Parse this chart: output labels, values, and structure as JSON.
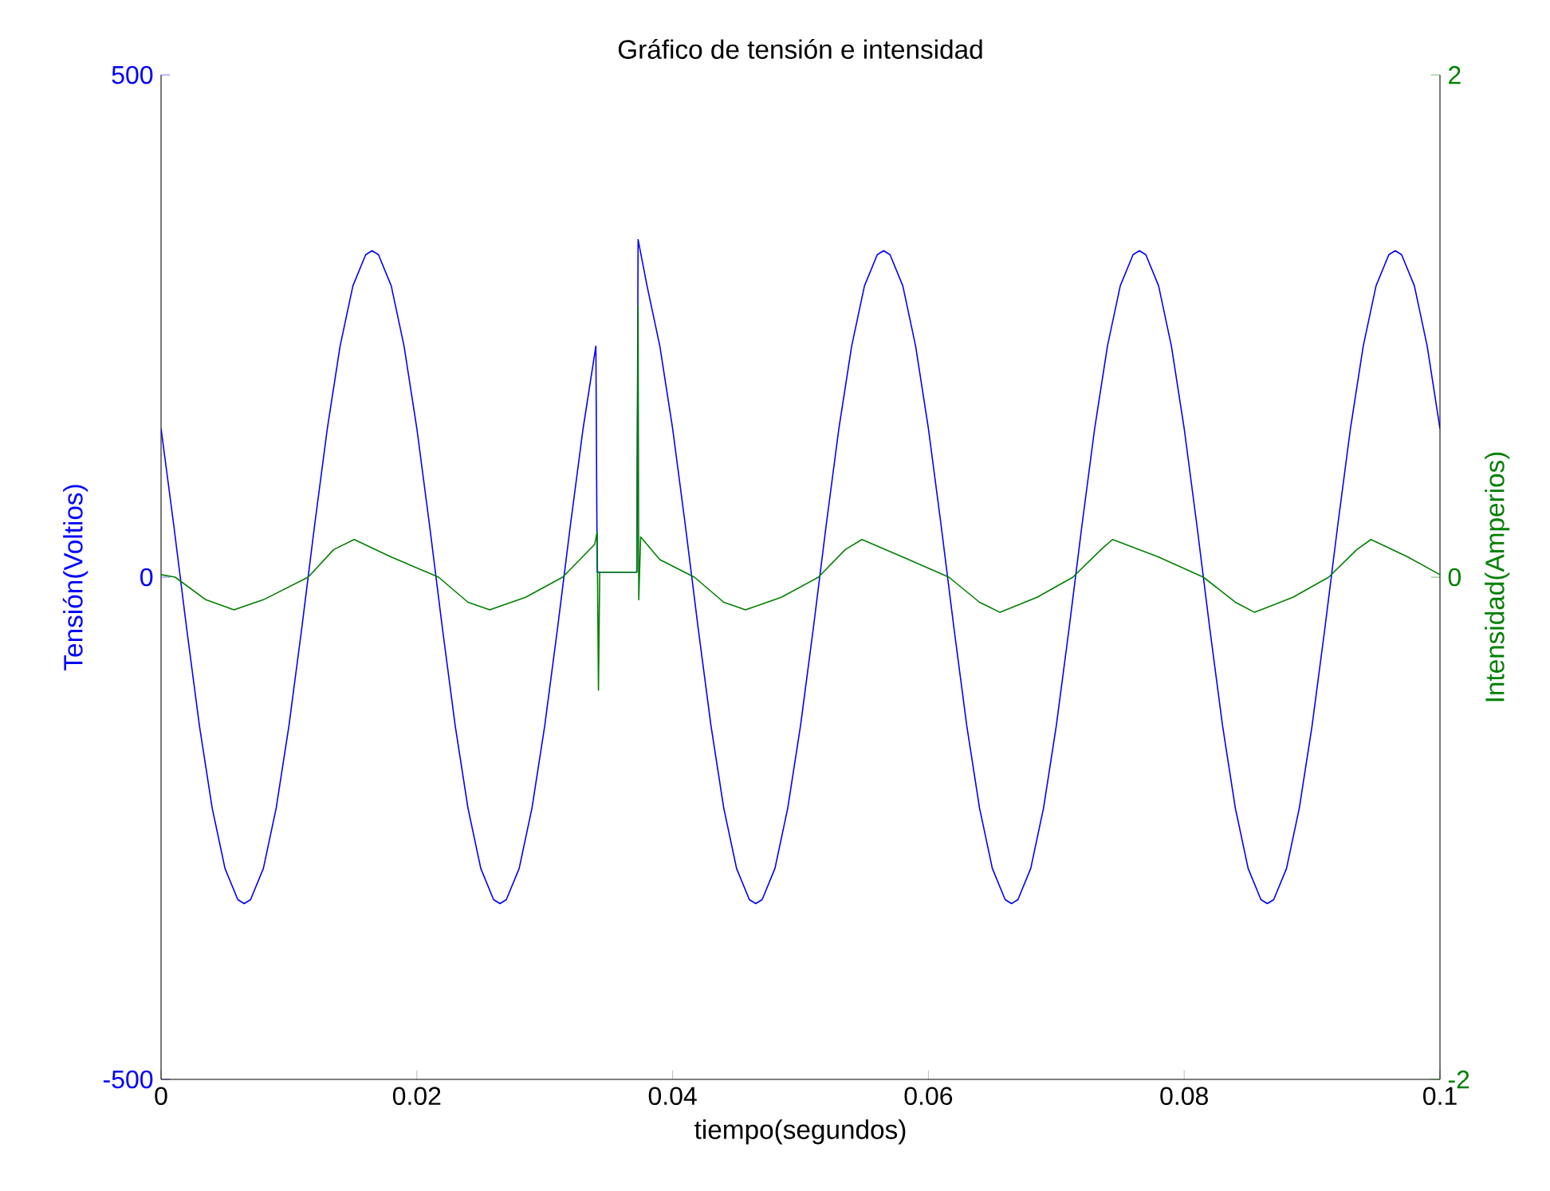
{
  "chart_data": {
    "type": "line",
    "title": "Gráfico de tensión e intensidad",
    "xlabel": "tiempo(segundos)",
    "ylabel": "Tensión(Voltios)",
    "y2label": "Intensidad(Amperios)",
    "xlim": [
      0,
      0.1
    ],
    "xticks": [
      0,
      0.02,
      0.04,
      0.06,
      0.08,
      0.1
    ],
    "ylim": [
      -500,
      500
    ],
    "yticks": [
      -500,
      0,
      500
    ],
    "y2lim": [
      -2,
      2
    ],
    "y2ticks": [
      -2,
      0,
      2
    ],
    "series": [
      {
        "color": "#0000ff",
        "x": [
          0,
          0.001,
          0.002,
          0.003,
          0.004,
          0.005,
          0.006,
          0.0065,
          0.007,
          0.008,
          0.009,
          0.01,
          0.011,
          0.012,
          0.013,
          0.014,
          0.015,
          0.016,
          0.0165,
          0.017,
          0.018,
          0.019,
          0.02,
          0.021,
          0.022,
          0.023,
          0.024,
          0.025,
          0.026,
          0.0265,
          0.027,
          0.028,
          0.029,
          0.03,
          0.031,
          0.032,
          0.033,
          0.034,
          0.0341,
          0.0372,
          0.0373,
          0.038,
          0.039,
          0.04,
          0.041,
          0.042,
          0.043,
          0.044,
          0.045,
          0.046,
          0.0465,
          0.047,
          0.048,
          0.049,
          0.05,
          0.051,
          0.052,
          0.053,
          0.054,
          0.055,
          0.056,
          0.0565,
          0.057,
          0.058,
          0.059,
          0.06,
          0.061,
          0.062,
          0.063,
          0.064,
          0.065,
          0.066,
          0.0665,
          0.067,
          0.068,
          0.069,
          0.07,
          0.071,
          0.072,
          0.073,
          0.074,
          0.075,
          0.076,
          0.0765,
          0.077,
          0.078,
          0.079,
          0.08,
          0.081,
          0.082,
          0.083,
          0.084,
          0.085,
          0.086,
          0.0865,
          0.087,
          0.088,
          0.089,
          0.09,
          0.091,
          0.092,
          0.093,
          0.094,
          0.095,
          0.096,
          0.0965,
          0.097,
          0.098,
          0.099,
          0.1
        ],
        "values": [
          148,
          51,
          -51,
          -148,
          -230,
          -290,
          -321,
          -325,
          -321,
          -290,
          -230,
          -148,
          -51,
          51,
          148,
          230,
          290,
          321,
          325,
          321,
          290,
          230,
          148,
          51,
          -51,
          -148,
          -230,
          -290,
          -321,
          -325,
          -321,
          -290,
          -230,
          -148,
          -51,
          51,
          148,
          230,
          5,
          5,
          336,
          290,
          230,
          148,
          51,
          -51,
          -148,
          -230,
          -290,
          -321,
          -325,
          -321,
          -290,
          -230,
          -148,
          -51,
          51,
          148,
          230,
          290,
          321,
          325,
          321,
          290,
          230,
          148,
          51,
          -51,
          -148,
          -230,
          -290,
          -321,
          -325,
          -321,
          -290,
          -230,
          -148,
          -51,
          51,
          148,
          230,
          290,
          321,
          325,
          321,
          290,
          230,
          148,
          51,
          -51,
          -148,
          -230,
          -290,
          -321,
          -325,
          -321,
          -290,
          -230,
          -148,
          -51,
          51,
          148,
          230,
          290,
          321,
          325,
          321,
          290,
          230,
          148
        ]
      },
      {
        "color": "#008000",
        "axis": "y2",
        "x": [
          0,
          0.0011,
          0.0035,
          0.0057,
          0.008,
          0.0115,
          0.0135,
          0.0151,
          0.018,
          0.0217,
          0.024,
          0.0257,
          0.0285,
          0.0314,
          0.0339,
          0.0341,
          0.0342,
          0.0343,
          0.0372,
          0.0373,
          0.03735,
          0.0375,
          0.039,
          0.0417,
          0.044,
          0.0457,
          0.0485,
          0.0514,
          0.0535,
          0.0548,
          0.058,
          0.0616,
          0.064,
          0.0656,
          0.0685,
          0.0713,
          0.0735,
          0.0744,
          0.078,
          0.0815,
          0.084,
          0.0855,
          0.0885,
          0.0913,
          0.0935,
          0.0946,
          0.0975,
          0.1
        ],
        "values": [
          0.01,
          0,
          -0.09,
          -0.13,
          -0.09,
          0,
          0.11,
          0.15,
          0.08,
          0,
          -0.1,
          -0.13,
          -0.08,
          0,
          0.13,
          0.18,
          -0.45,
          0.02,
          0.02,
          1.08,
          -0.09,
          0.16,
          0.07,
          0,
          -0.1,
          -0.13,
          -0.08,
          0,
          0.11,
          0.15,
          0.08,
          0,
          -0.1,
          -0.14,
          -0.08,
          0,
          0.11,
          0.15,
          0.08,
          0,
          -0.1,
          -0.14,
          -0.08,
          0,
          0.11,
          0.15,
          0.08,
          0.01
        ]
      }
    ]
  }
}
